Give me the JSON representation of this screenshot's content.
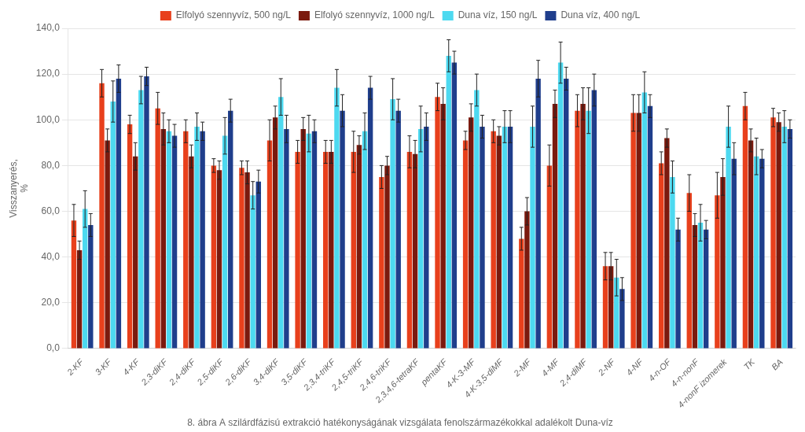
{
  "chart_data": {
    "type": "bar",
    "title": "8. ábra A szilárdfázisú extrakció hatékonyságának vizsgálata fenolszármazékokkal adalékolt Duna-víz",
    "ylabel": "Visszanyerés,\n%",
    "categories": [
      "2-KF",
      "3-KF",
      "4-KF",
      "2,3-diKF",
      "2,4-diKF",
      "2,5-diKF",
      "2,6-diKF",
      "3,4-diKF",
      "3,5-diKF",
      "2,3,4-triKF",
      "2,4,5-triKF",
      "2,4,6-triKF",
      "2,3,4,6-tetraKF",
      "pentaKF",
      "4-K-3-MF",
      "4-K-3,5-diMF",
      "2-MF",
      "4-MF",
      "2,4-diMF",
      "2-NF",
      "4-NF",
      "4-n-OF",
      "4-n-nonF",
      "4-nonF izomerek",
      "TK",
      "BA"
    ],
    "series": [
      {
        "name": "Elfolyó szennyvíz, 500 ng/L",
        "color": "#E8401C",
        "values": [
          56,
          116,
          98,
          105,
          95,
          80,
          79,
          91,
          86,
          86,
          86,
          75,
          86,
          110,
          91,
          95,
          48,
          80,
          104,
          36,
          103,
          81,
          68,
          67,
          106,
          101
        ],
        "errors": [
          7,
          6,
          4,
          7,
          5,
          3,
          3,
          9,
          5,
          5,
          9,
          5,
          7,
          6,
          4,
          5,
          5,
          9,
          7,
          6,
          8,
          5,
          8,
          10,
          6,
          4
        ]
      },
      {
        "name": "Elfolyó szennyvíz, 1000 ng/L",
        "color": "#7B1A0E",
        "values": [
          43,
          91,
          84,
          96,
          84,
          78,
          77,
          101,
          96,
          86,
          89,
          80,
          85,
          107,
          101,
          93,
          60,
          107,
          107,
          36,
          103,
          92,
          54,
          75,
          91,
          99
        ],
        "errors": [
          4,
          5,
          6,
          7,
          5,
          4,
          5,
          5,
          5,
          5,
          4,
          4,
          6,
          7,
          6,
          4,
          6,
          6,
          7,
          6,
          8,
          4,
          5,
          8,
          5,
          4
        ]
      },
      {
        "name": "Duna víz, 150 ng/L",
        "color": "#4DD9F0",
        "values": [
          61,
          108,
          113,
          95,
          97,
          93,
          67,
          110,
          94,
          114,
          95,
          109,
          96,
          128,
          113,
          97,
          97,
          125,
          104,
          31,
          112,
          75,
          55,
          97,
          84,
          97
        ],
        "errors": [
          8,
          9,
          6,
          5,
          6,
          8,
          6,
          8,
          8,
          8,
          8,
          9,
          10,
          7,
          7,
          7,
          9,
          9,
          10,
          8,
          9,
          7,
          8,
          9,
          8,
          7
        ]
      },
      {
        "name": "Duna víz, 400 ng/L",
        "color": "#1F3E8C",
        "values": [
          54,
          118,
          119,
          93,
          95,
          104,
          73,
          96,
          95,
          104,
          114,
          104,
          97,
          125,
          97,
          97,
          118,
          118,
          113,
          26,
          106,
          52,
          52,
          83,
          83,
          96
        ],
        "errors": [
          5,
          6,
          4,
          5,
          4,
          5,
          5,
          6,
          5,
          7,
          5,
          5,
          6,
          5,
          5,
          7,
          8,
          5,
          7,
          5,
          5,
          5,
          4,
          7,
          4,
          4
        ]
      }
    ],
    "ylim": [
      0,
      140
    ],
    "yticks": [
      {
        "value": 0,
        "label": "0,0"
      },
      {
        "value": 20,
        "label": "20,0"
      },
      {
        "value": 40,
        "label": "40,0"
      },
      {
        "value": 60,
        "label": "60,0"
      },
      {
        "value": 80,
        "label": "80,0"
      },
      {
        "value": 100,
        "label": "100,0"
      },
      {
        "value": 120,
        "label": "120,0"
      },
      {
        "value": 140,
        "label": "140,0"
      }
    ],
    "grid": true,
    "legend": "top"
  }
}
